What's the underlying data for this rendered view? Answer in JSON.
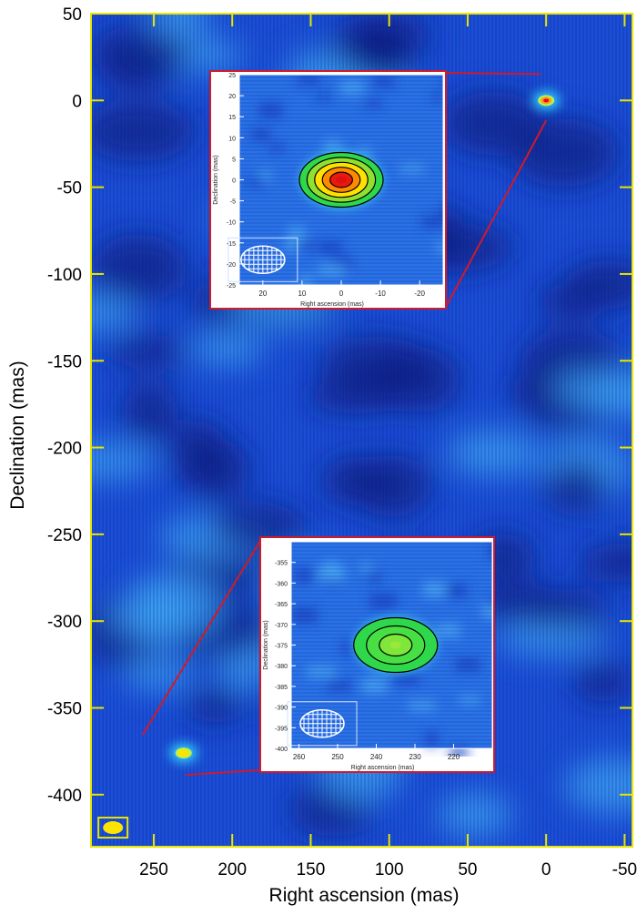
{
  "chart_data": {
    "type": "heatmap",
    "colors": {
      "frame": "#e8e400",
      "inset_frame": "#d01a2a",
      "background": "#1b4fd8",
      "source": "#ffe400",
      "core": "#e01010"
    },
    "main": {
      "xlabel": "Right ascension (mas)",
      "ylabel": "Declination (mas)",
      "xlim": [
        290,
        -55
      ],
      "ylim": [
        -430,
        50
      ],
      "xticks": [
        250,
        200,
        150,
        100,
        50,
        0,
        -50
      ],
      "yticks": [
        50,
        0,
        -50,
        -100,
        -150,
        -200,
        -250,
        -300,
        -350,
        -400
      ],
      "sources": [
        {
          "ra": 0,
          "dec": 0
        },
        {
          "ra": 231,
          "dec": -376
        }
      ],
      "beam": {
        "ra": 276,
        "dec": -419
      }
    },
    "insets": [
      {
        "xlabel": "Right ascension (mas)",
        "ylabel": "Declination (mas)",
        "xlim": [
          26,
          -26
        ],
        "ylim": [
          -25,
          25
        ],
        "xticks": [
          20,
          10,
          0,
          -10,
          -20
        ],
        "yticks": [
          25,
          20,
          15,
          10,
          5,
          0,
          -5,
          -10,
          -15,
          -20,
          -25
        ],
        "source": {
          "ra": 0,
          "dec": 0,
          "peak": "red",
          "levels": 5
        },
        "beam": {
          "ra": 20,
          "dec": -19
        },
        "zoom_of_source": 0
      },
      {
        "xlabel": "Right ascension (mas)",
        "ylabel": "Declination (mas)",
        "xlim": [
          262,
          210
        ],
        "ylim": [
          -400,
          -350
        ],
        "xticks": [
          260,
          250,
          240,
          230,
          220
        ],
        "yticks": [
          -355,
          -360,
          -365,
          -370,
          -375,
          -380,
          -385,
          -390,
          -395,
          -400
        ],
        "source": {
          "ra": 235,
          "dec": -375,
          "peak": "green",
          "levels": 3
        },
        "beam": {
          "ra": 254,
          "dec": -394
        },
        "zoom_of_source": 1
      }
    ]
  }
}
